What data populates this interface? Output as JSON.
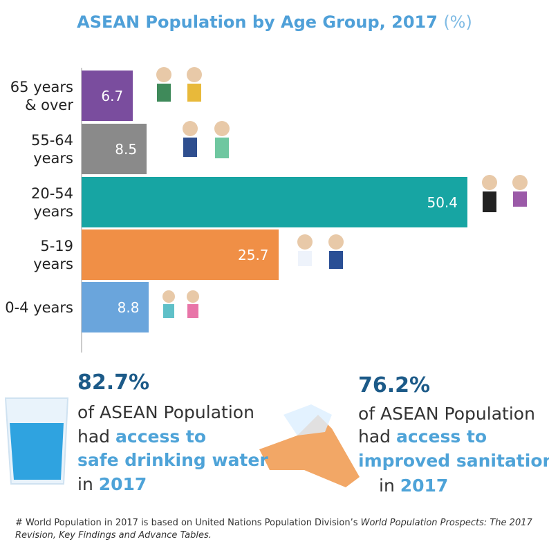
{
  "chart_data": {
    "type": "hbar",
    "title": "ASEAN Population by Age Group, 2017",
    "unit": "(%)",
    "categories": [
      "65 years & over",
      "55-64 years",
      "20-54 years",
      "5-19 years",
      "0-4 years"
    ],
    "values": [
      6.7,
      8.5,
      50.4,
      25.7,
      8.8
    ],
    "colors": [
      "#7a4d9e",
      "#8a8a8a",
      "#17a5a3",
      "#f08f46",
      "#6aa5dc"
    ]
  },
  "stats": [
    {
      "figure": "82.7%",
      "lines": [
        {
          "plain": "of ASEAN Population"
        },
        {
          "plain": "had",
          "em": "access to"
        },
        {
          "em": "safe drinking water"
        },
        {
          "plain": "in",
          "em": "2017"
        }
      ]
    },
    {
      "figure": "76.2%",
      "lines": [
        {
          "plain": "of ASEAN Population"
        },
        {
          "plain": "had",
          "em": "access to"
        },
        {
          "em": "improved sanitation"
        },
        {
          "plain": "in",
          "em": "2017"
        }
      ]
    }
  ],
  "footnote": {
    "marker": "#",
    "text": "World Population in 2017 is based on United Nations Population Division’s",
    "source": "World Population Prospects: The 2017 Revision, Key Findings and Advance Tables."
  }
}
